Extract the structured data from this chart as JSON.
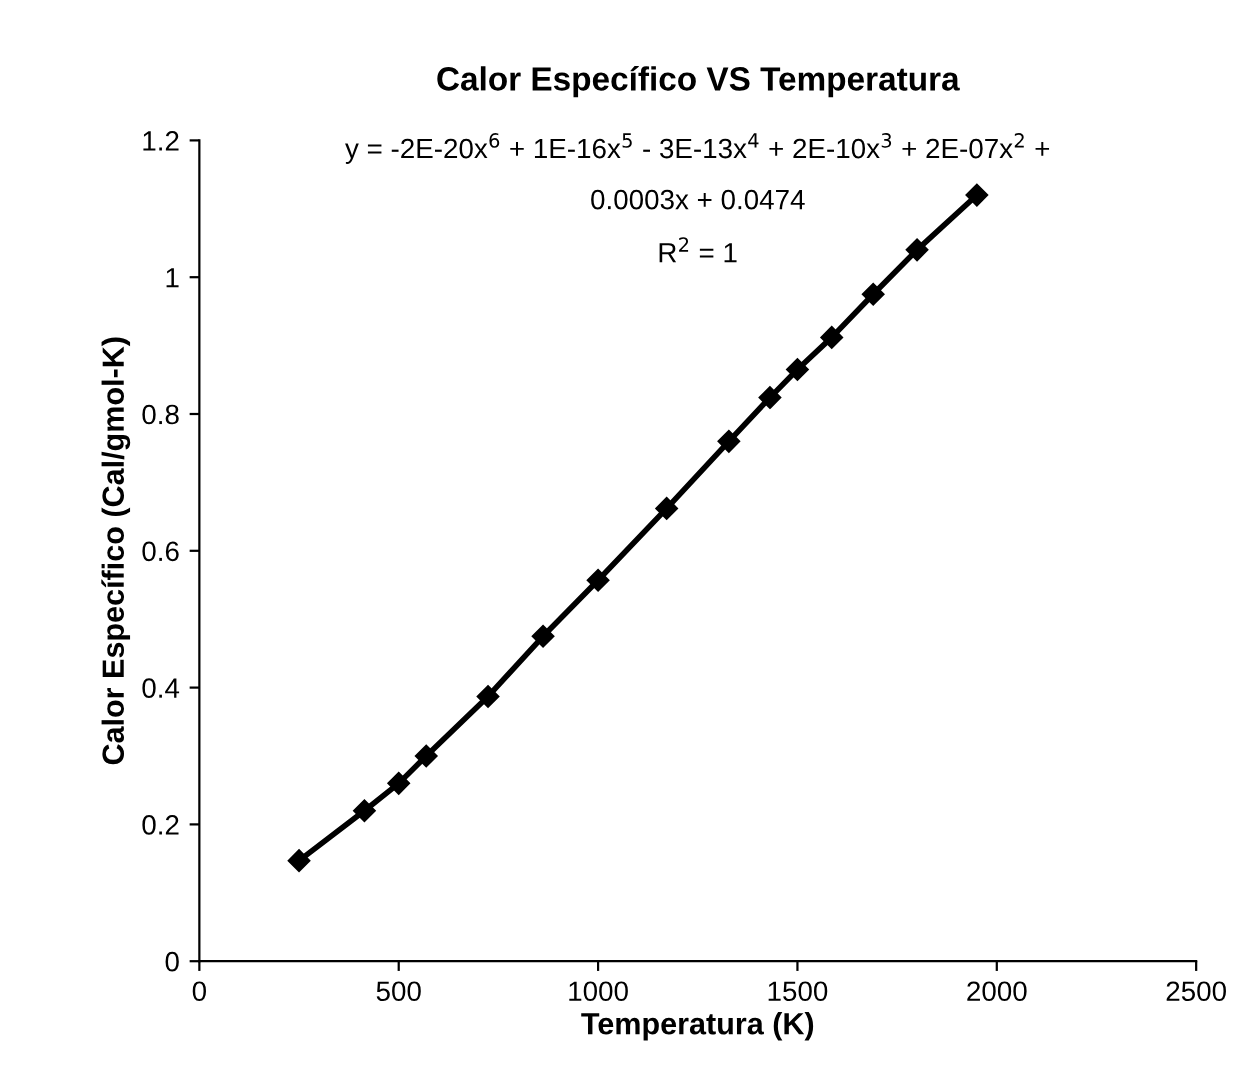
{
  "chart_data": {
    "type": "line",
    "title": "Calor Específico VS Temperatura",
    "xlabel": "Temperatura (K)",
    "ylabel": "Calor Específico (Cal/gmol-K)",
    "annotations": [
      "y = -2E-20x$^{6}$ + 1E-16x$^{5}$ - 3E-13x$^{4}$ + 2E-10x$^{3}$ + 2E-07x$^{2}$ +",
      "0.0003x + 0.0474",
      "R$^{2}$ = 1"
    ],
    "series": [
      {
        "color": "#000000",
        "x": [
          250,
          414,
          500,
          569,
          724,
          862,
          1000,
          1172,
          1328,
          1431,
          1500,
          1586,
          1690,
          1800,
          1950
        ],
        "values": [
          0.147,
          0.22,
          0.26,
          0.3,
          0.387,
          0.475,
          0.557,
          0.662,
          0.76,
          0.824,
          0.865,
          0.912,
          0.975,
          1.04,
          1.12
        ]
      }
    ],
    "xlim": [
      0,
      2500
    ],
    "xticks": [
      0,
      500,
      1000,
      1500,
      2000,
      2500
    ],
    "ylim": [
      0,
      1.2
    ],
    "yticks": [
      0,
      0.2,
      0.4,
      0.6,
      0.8,
      1,
      1.2
    ],
    "marker": "diamond",
    "line_style": "solid",
    "grid": false
  }
}
